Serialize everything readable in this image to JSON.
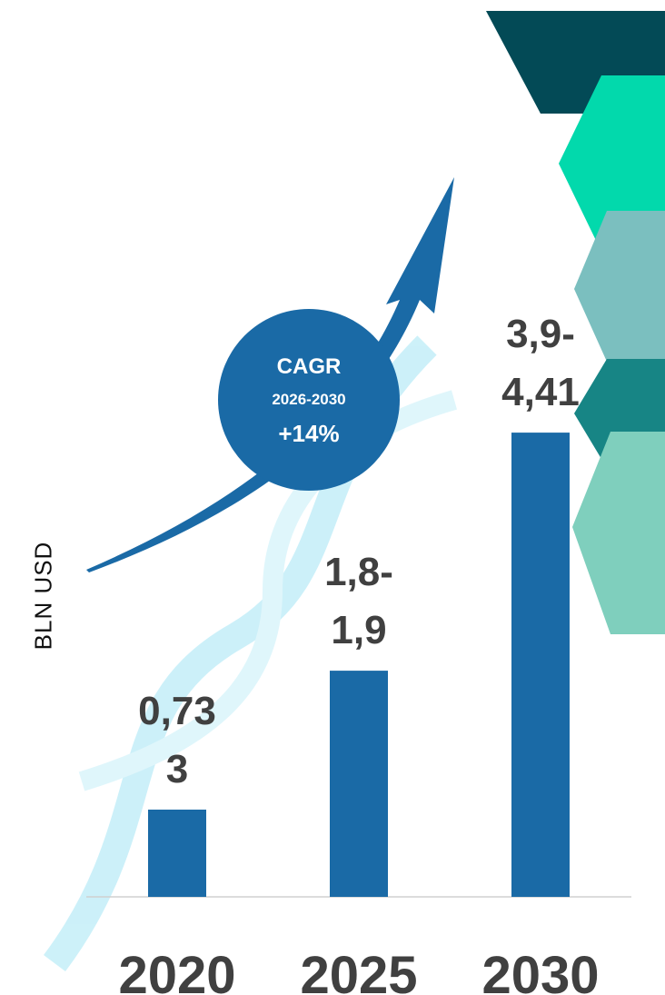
{
  "chart_data": {
    "type": "bar",
    "categories": [
      "2020",
      "2025",
      "2030"
    ],
    "values": [
      0.733,
      1.9,
      3.9
    ],
    "value_labels": [
      "0,733",
      "1,8-1,9",
      "3,9-4,41"
    ],
    "color": "#1a6aa6",
    "y_axis_label": "BLN USD",
    "annotations": [
      "CAGR",
      "2026-2030",
      "+14%"
    ]
  }
}
